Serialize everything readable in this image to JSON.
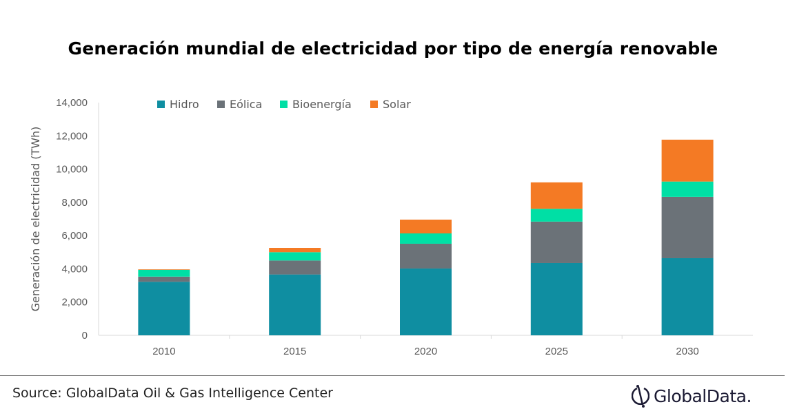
{
  "chart_data": {
    "type": "bar",
    "stacked": true,
    "title": "Generación mundial de electricidad por tipo de energía renovable",
    "ylabel": "Generación de electricidad (TWh)",
    "xlabel": "",
    "ylim": [
      0,
      14000
    ],
    "yticks": [
      0,
      2000,
      4000,
      6000,
      8000,
      10000,
      12000,
      14000
    ],
    "ytick_labels": [
      "0",
      "2,000",
      "4,000",
      "6,000",
      "8,000",
      "10,000",
      "12,000",
      "14,000"
    ],
    "grid": false,
    "legend_position": "top",
    "categories": [
      "2010",
      "2015",
      "2020",
      "2025",
      "2030"
    ],
    "series": [
      {
        "name": "Hidro",
        "color": "#0f8ea1",
        "values": [
          3220,
          3660,
          4020,
          4350,
          4640
        ]
      },
      {
        "name": "Eólica",
        "color": "#6b7278",
        "values": [
          310,
          840,
          1490,
          2490,
          3690
        ]
      },
      {
        "name": "Bioenergía",
        "color": "#00dfa5",
        "values": [
          410,
          500,
          620,
          770,
          920
        ]
      },
      {
        "name": "Solar",
        "color": "#f47a24",
        "values": [
          30,
          260,
          830,
          1590,
          2520
        ]
      }
    ]
  },
  "footer": {
    "source": "Source: GlobalData Oil & Gas Intelligence Center",
    "logo": "GlobalData."
  }
}
